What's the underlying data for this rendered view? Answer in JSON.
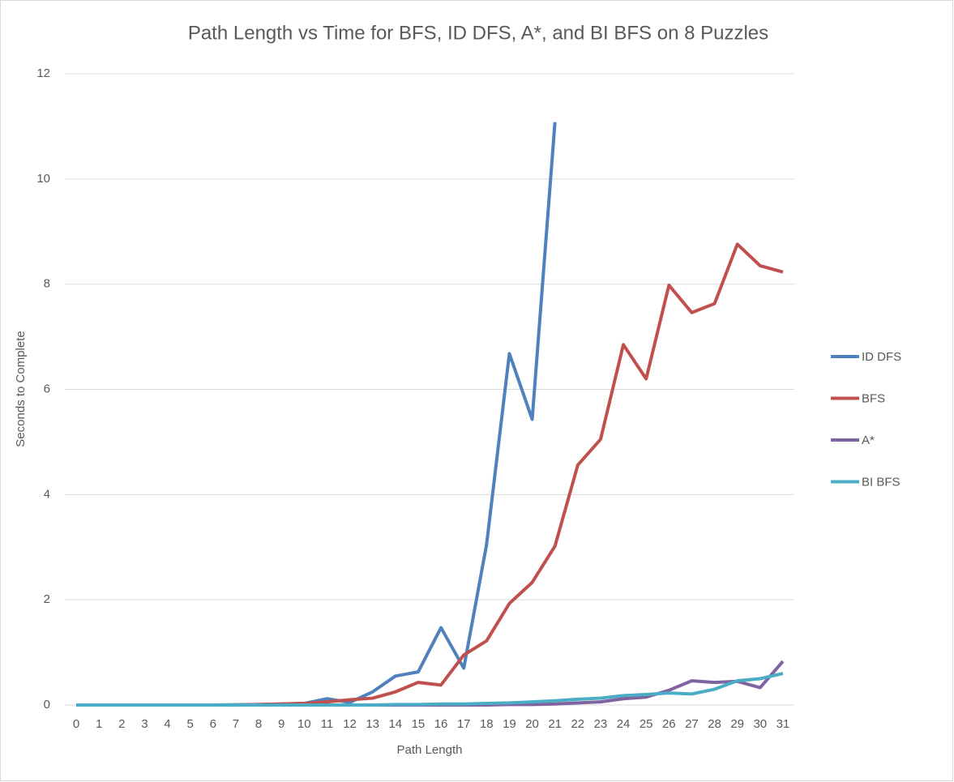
{
  "chart_data": {
    "type": "line",
    "title": "Path Length vs Time for BFS, ID DFS, A*, and BI BFS on 8 Puzzles",
    "x_label": "Path Length",
    "y_label": "Seconds to Complete",
    "categories": [
      "0",
      "1",
      "2",
      "3",
      "4",
      "5",
      "6",
      "7",
      "8",
      "9",
      "10",
      "11",
      "12",
      "13",
      "14",
      "15",
      "16",
      "17",
      "18",
      "19",
      "20",
      "21",
      "22",
      "23",
      "24",
      "25",
      "26",
      "27",
      "28",
      "29",
      "30",
      "31"
    ],
    "series": [
      {
        "name": "ID DFS",
        "color": "#4f81bd",
        "values": [
          0,
          0,
          0,
          0,
          0,
          0,
          0,
          0.005,
          0.01,
          0.02,
          0.03,
          0.12,
          0.05,
          0.25,
          0.55,
          0.63,
          1.47,
          0.7,
          3.05,
          6.68,
          5.43,
          11.08,
          null,
          null,
          null,
          null,
          null,
          null,
          null,
          null,
          null,
          null
        ]
      },
      {
        "name": "BFS",
        "color": "#c0504d",
        "values": [
          0,
          0,
          0,
          0,
          0,
          0,
          0,
          0,
          0.01,
          0.02,
          0.03,
          0.06,
          0.1,
          0.13,
          0.25,
          0.43,
          0.38,
          0.95,
          1.22,
          1.93,
          2.33,
          3.02,
          4.56,
          5.05,
          6.85,
          6.2,
          7.98,
          7.46,
          7.63,
          8.76,
          8.35,
          8.23
        ]
      },
      {
        "name": "A*",
        "color": "#8064a2",
        "values": [
          0,
          0,
          0,
          0,
          0,
          0,
          0,
          0,
          0,
          0,
          0,
          0,
          0,
          0,
          0,
          0,
          0,
          0,
          0,
          0.01,
          0.01,
          0.02,
          0.04,
          0.06,
          0.12,
          0.15,
          0.28,
          0.46,
          0.43,
          0.45,
          0.33,
          0.83
        ]
      },
      {
        "name": "BI BFS",
        "color": "#4bacc6",
        "values": [
          0,
          0,
          0,
          0,
          0,
          0,
          0,
          0,
          0,
          0,
          0,
          0,
          0,
          0,
          0.01,
          0.01,
          0.02,
          0.02,
          0.03,
          0.04,
          0.06,
          0.08,
          0.11,
          0.13,
          0.18,
          0.2,
          0.23,
          0.21,
          0.3,
          0.46,
          0.5,
          0.6
        ]
      }
    ],
    "ylim": [
      0,
      12
    ],
    "yticks": [
      0,
      2,
      4,
      6,
      8,
      10,
      12
    ],
    "grid": true,
    "legend": "right"
  }
}
